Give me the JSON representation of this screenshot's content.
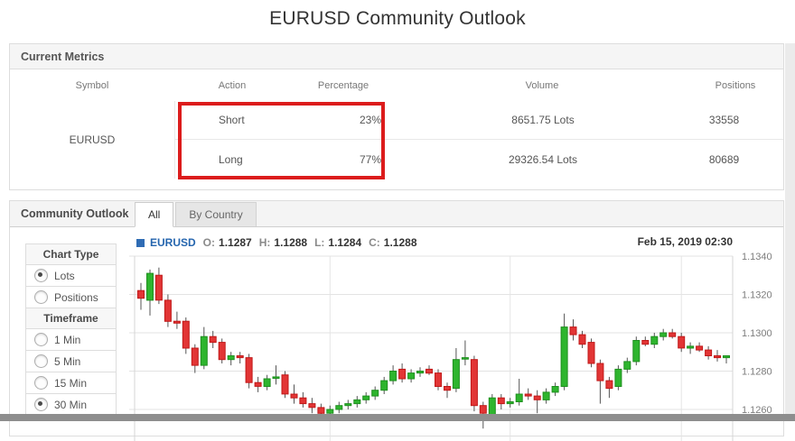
{
  "page": {
    "title": "EURUSD Community Outlook"
  },
  "metrics_panel": {
    "title": "Current Metrics",
    "columns": [
      "Symbol",
      "Action",
      "Percentage",
      "Volume",
      "Positions"
    ],
    "symbol": "EURUSD",
    "rows": [
      {
        "action": "Short",
        "percentage": "23%",
        "volume": "8651.75 Lots",
        "positions": "33558"
      },
      {
        "action": "Long",
        "percentage": "77%",
        "volume": "29326.54 Lots",
        "positions": "80689"
      }
    ],
    "highlight_color": "#dc1c1c"
  },
  "outlook_panel": {
    "title": "Community Outlook",
    "tabs": [
      {
        "label": "All",
        "active": true
      },
      {
        "label": "By Country",
        "active": false
      }
    ],
    "sidebar": {
      "groups": [
        {
          "header": "Chart Type",
          "options": [
            {
              "label": "Lots",
              "selected": true
            },
            {
              "label": "Positions",
              "selected": false
            }
          ]
        },
        {
          "header": "Timeframe",
          "options": [
            {
              "label": "1 Min",
              "selected": false
            },
            {
              "label": "5 Min",
              "selected": false
            },
            {
              "label": "15 Min",
              "selected": false
            },
            {
              "label": "30 Min",
              "selected": true
            }
          ]
        }
      ]
    },
    "legend": {
      "marker_color": "#2f6cb4",
      "symbol": "EURUSD",
      "o_label": "O:",
      "o": "1.1287",
      "h_label": "H:",
      "h": "1.1288",
      "l_label": "L:",
      "l": "1.1284",
      "c_label": "C:",
      "c": "1.1288"
    },
    "timestamp": "Feb 15, 2019 02:30"
  },
  "chart_data": {
    "type": "candlestick",
    "symbol": "EURUSD",
    "timeframe": "30 Min",
    "title": "EURUSD community volume (Lots), 30-minute candles",
    "last_candle": {
      "open": 1.1287,
      "high": 1.1288,
      "low": 1.1284,
      "close": 1.1288
    },
    "y_ticks": [
      1.134,
      1.132,
      1.13,
      1.128,
      1.126
    ],
    "y_axis_side": "right",
    "grid": true,
    "vgrid_candle_index": [
      22,
      42,
      61
    ],
    "up_color": "#2eb52e",
    "up_stroke": "#1f8f1f",
    "down_color": "#e23535",
    "down_stroke": "#c01818",
    "wick_color": "#555555",
    "candles": [
      [
        1.1322,
        1.1326,
        1.1312,
        1.1318
      ],
      [
        1.1317,
        1.1333,
        1.1309,
        1.1331
      ],
      [
        1.133,
        1.1334,
        1.1315,
        1.1317
      ],
      [
        1.1317,
        1.132,
        1.1303,
        1.1306
      ],
      [
        1.1306,
        1.1311,
        1.1302,
        1.1305
      ],
      [
        1.1306,
        1.1308,
        1.1289,
        1.1292
      ],
      [
        1.1292,
        1.1294,
        1.1279,
        1.1283
      ],
      [
        1.1283,
        1.1303,
        1.1281,
        1.1298
      ],
      [
        1.1298,
        1.1301,
        1.1292,
        1.1295
      ],
      [
        1.1295,
        1.1297,
        1.1284,
        1.1286
      ],
      [
        1.1286,
        1.129,
        1.1283,
        1.1288
      ],
      [
        1.1288,
        1.129,
        1.1284,
        1.1287
      ],
      [
        1.1287,
        1.1289,
        1.1271,
        1.1274
      ],
      [
        1.1274,
        1.1277,
        1.1269,
        1.1272
      ],
      [
        1.1272,
        1.1278,
        1.127,
        1.1276
      ],
      [
        1.1277,
        1.1283,
        1.1273,
        1.1277
      ],
      [
        1.1278,
        1.128,
        1.1266,
        1.1268
      ],
      [
        1.1268,
        1.1273,
        1.1263,
        1.1266
      ],
      [
        1.1266,
        1.1269,
        1.1261,
        1.1263
      ],
      [
        1.1263,
        1.1266,
        1.1258,
        1.1261
      ],
      [
        1.1261,
        1.1263,
        1.1255,
        1.1258
      ],
      [
        1.1258,
        1.1262,
        1.1255,
        1.126
      ],
      [
        1.126,
        1.1264,
        1.1258,
        1.1262
      ],
      [
        1.1262,
        1.1265,
        1.126,
        1.1263
      ],
      [
        1.1263,
        1.1267,
        1.1261,
        1.1265
      ],
      [
        1.1265,
        1.1269,
        1.1263,
        1.1267
      ],
      [
        1.1267,
        1.1272,
        1.1265,
        1.127
      ],
      [
        1.127,
        1.1277,
        1.1268,
        1.1275
      ],
      [
        1.1275,
        1.1283,
        1.1273,
        1.128
      ],
      [
        1.1281,
        1.1284,
        1.1274,
        1.1276
      ],
      [
        1.1276,
        1.1281,
        1.1274,
        1.1279
      ],
      [
        1.1279,
        1.1282,
        1.1277,
        1.128
      ],
      [
        1.1281,
        1.1283,
        1.1278,
        1.1279
      ],
      [
        1.1279,
        1.1281,
        1.127,
        1.1272
      ],
      [
        1.1272,
        1.1274,
        1.1266,
        1.127
      ],
      [
        1.1271,
        1.1292,
        1.1269,
        1.1286
      ],
      [
        1.1287,
        1.1296,
        1.1283,
        1.1287
      ],
      [
        1.1286,
        1.1288,
        1.1259,
        1.1262
      ],
      [
        1.1262,
        1.1264,
        1.125,
        1.1258
      ],
      [
        1.1257,
        1.1268,
        1.1254,
        1.1266
      ],
      [
        1.1266,
        1.1268,
        1.126,
        1.1263
      ],
      [
        1.1263,
        1.1266,
        1.1261,
        1.1264
      ],
      [
        1.1264,
        1.1276,
        1.1262,
        1.1268
      ],
      [
        1.1268,
        1.1271,
        1.1265,
        1.1267
      ],
      [
        1.1267,
        1.127,
        1.1258,
        1.1265
      ],
      [
        1.1265,
        1.1271,
        1.1263,
        1.1269
      ],
      [
        1.1269,
        1.1274,
        1.1267,
        1.1272
      ],
      [
        1.1272,
        1.131,
        1.127,
        1.1303
      ],
      [
        1.1303,
        1.1307,
        1.1296,
        1.1299
      ],
      [
        1.1299,
        1.1301,
        1.1292,
        1.1294
      ],
      [
        1.1295,
        1.1297,
        1.1282,
        1.1284
      ],
      [
        1.1284,
        1.1286,
        1.1263,
        1.1275
      ],
      [
        1.1275,
        1.1277,
        1.1266,
        1.1271
      ],
      [
        1.1272,
        1.1283,
        1.127,
        1.1281
      ],
      [
        1.1281,
        1.1287,
        1.1279,
        1.1285
      ],
      [
        1.1285,
        1.1298,
        1.1283,
        1.1296
      ],
      [
        1.1296,
        1.1298,
        1.1293,
        1.1294
      ],
      [
        1.1294,
        1.13,
        1.1292,
        1.1298
      ],
      [
        1.1298,
        1.1302,
        1.1296,
        1.13
      ],
      [
        1.13,
        1.1302,
        1.1297,
        1.1298
      ],
      [
        1.1298,
        1.13,
        1.129,
        1.1292
      ],
      [
        1.1292,
        1.1295,
        1.1289,
        1.1293
      ],
      [
        1.1293,
        1.1295,
        1.129,
        1.1291
      ],
      [
        1.1291,
        1.1293,
        1.1286,
        1.1288
      ],
      [
        1.1288,
        1.1291,
        1.1285,
        1.1287
      ],
      [
        1.1287,
        1.1288,
        1.1284,
        1.1288
      ]
    ]
  }
}
